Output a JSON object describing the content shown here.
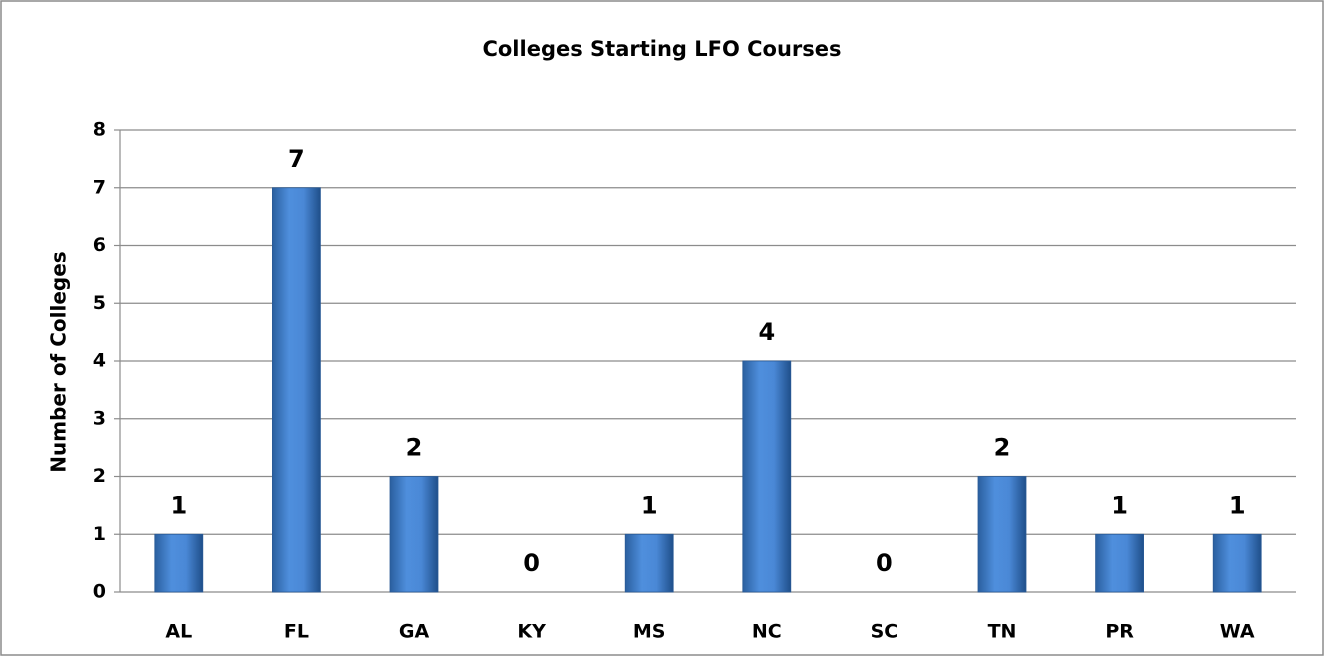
{
  "chart_data": {
    "type": "bar",
    "title": "Colleges Starting LFO Courses",
    "ylabel": "Number of Colleges",
    "categories": [
      "AL",
      "FL",
      "GA",
      "KY",
      "MS",
      "NC",
      "SC",
      "TN",
      "PR",
      "WA"
    ],
    "values": [
      1,
      7,
      2,
      0,
      1,
      4,
      0,
      2,
      1,
      1
    ],
    "color": "#3f7fd0",
    "ylim": [
      0,
      8
    ],
    "yticks": [
      0,
      1,
      2,
      3,
      4,
      5,
      6,
      7,
      8
    ],
    "grid": true
  }
}
